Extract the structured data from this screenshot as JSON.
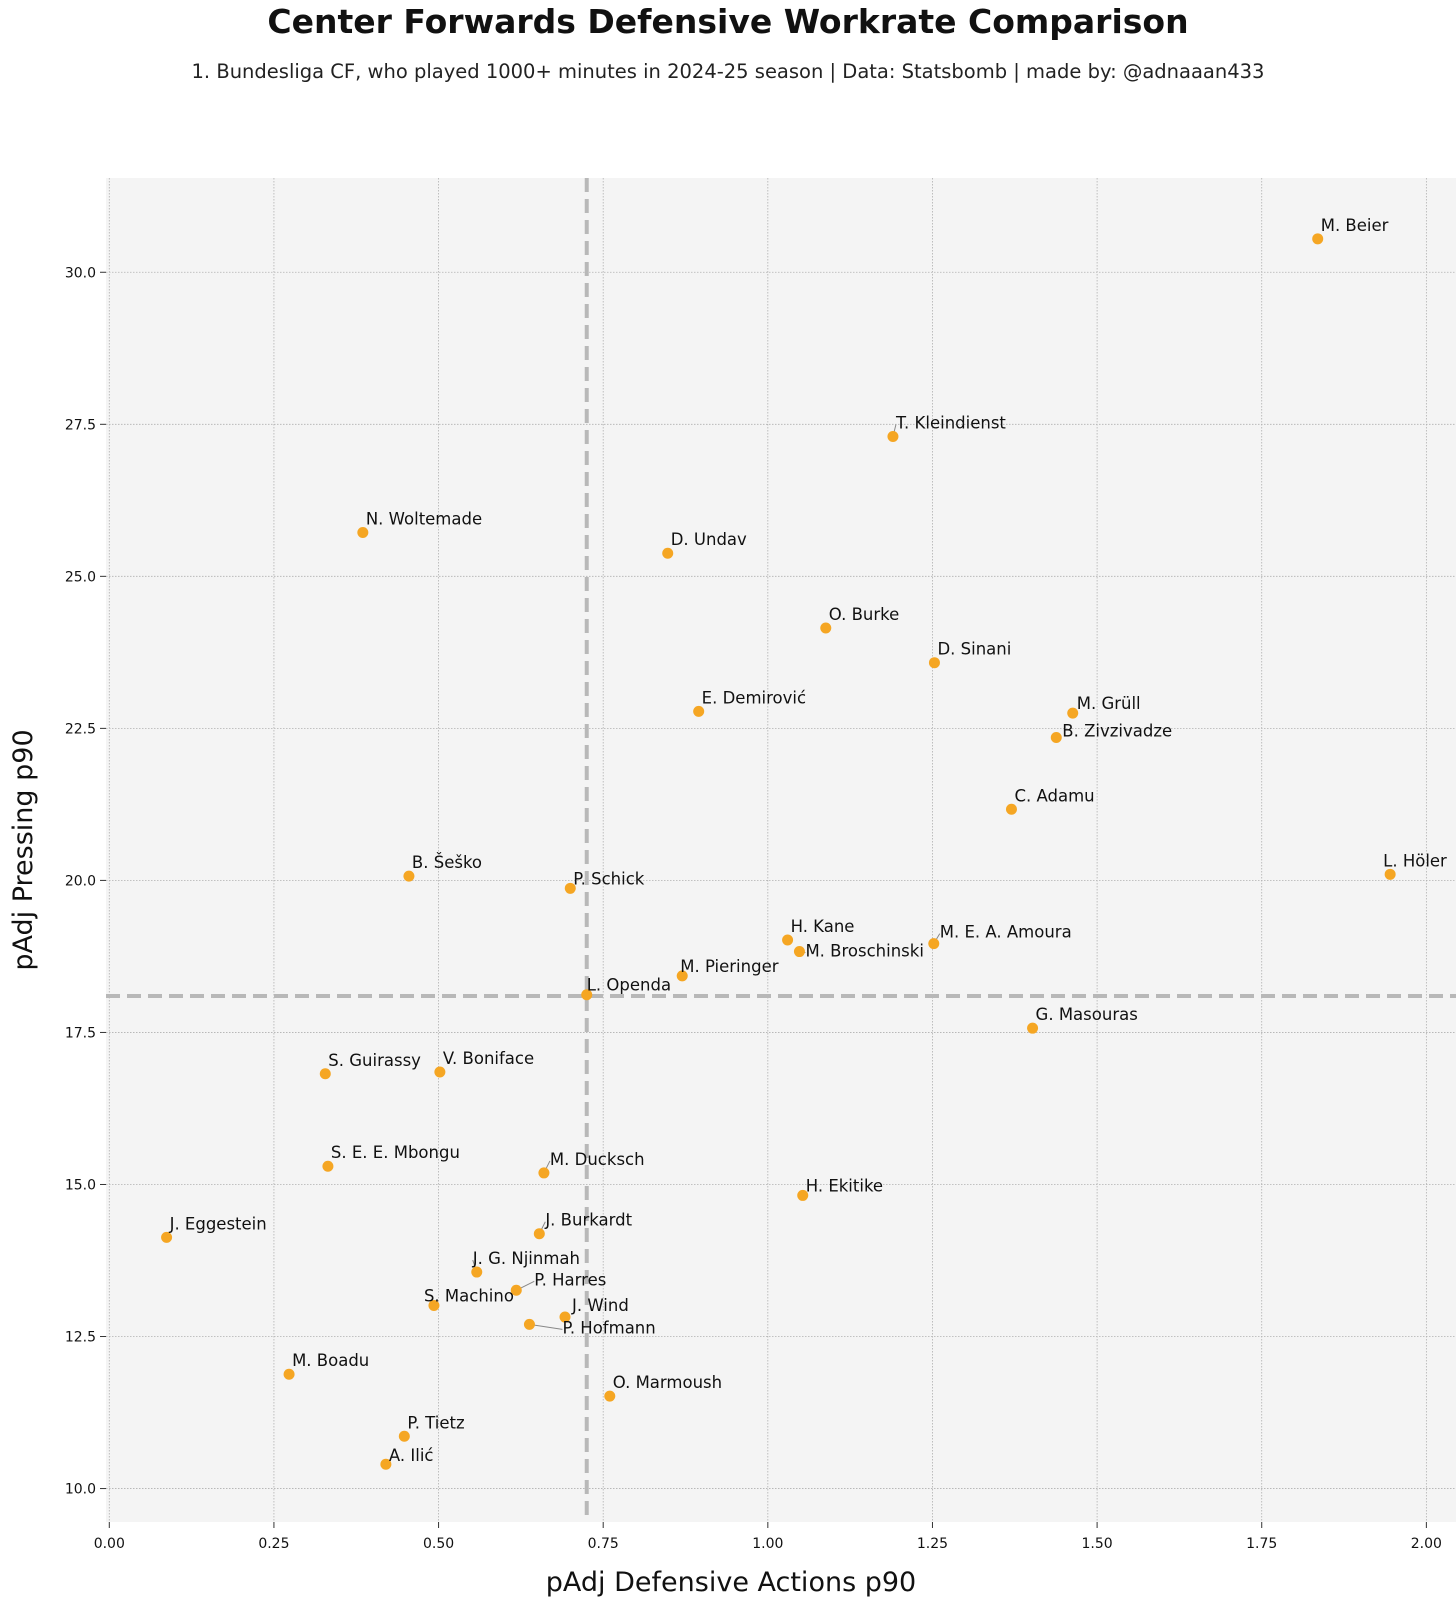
{
  "chart_data": {
    "type": "scatter",
    "title": "Center Forwards Defensive Workrate Comparison",
    "subtitle": "1. Bundesliga CF, who played 1000+ minutes in 2024-25 season  |  Data: Statsbomb  |  made by: @adnaaan433",
    "xlabel": "pAdj Defensive Actions p90",
    "ylabel": "pAdj Pressing p90",
    "xlim": [
      -0.005,
      2.045
    ],
    "ylim": [
      9.45,
      31.55
    ],
    "xticks": [
      "0.00",
      "0.25",
      "0.50",
      "0.75",
      "1.00",
      "1.25",
      "1.50",
      "1.75",
      "2.00"
    ],
    "yticks": [
      "10.0",
      "12.5",
      "15.0",
      "17.5",
      "20.0",
      "22.5",
      "25.0",
      "27.5",
      "30.0"
    ],
    "grid": true,
    "marker_color": "#f5a623",
    "reference_lines": {
      "x": 0.725,
      "y": 18.1
    },
    "points": [
      {
        "name": "M. Beier",
        "x": 1.835,
        "y": 30.55
      },
      {
        "name": "T. Kleindienst",
        "x": 1.19,
        "y": 27.3
      },
      {
        "name": "N. Woltemade",
        "x": 0.385,
        "y": 25.72
      },
      {
        "name": "D. Undav",
        "x": 0.848,
        "y": 25.38
      },
      {
        "name": "O. Burke",
        "x": 1.088,
        "y": 24.15
      },
      {
        "name": "D. Sinani",
        "x": 1.253,
        "y": 23.58
      },
      {
        "name": "E. Demirović",
        "x": 0.895,
        "y": 22.78
      },
      {
        "name": "M. Grüll",
        "x": 1.463,
        "y": 22.75
      },
      {
        "name": "B. Zivzivadze",
        "x": 1.438,
        "y": 22.35
      },
      {
        "name": "C. Adamu",
        "x": 1.37,
        "y": 21.17
      },
      {
        "name": "B. Šeško",
        "x": 0.455,
        "y": 20.07
      },
      {
        "name": "L. Höler",
        "x": 1.945,
        "y": 20.1
      },
      {
        "name": "P. Schick",
        "x": 0.7,
        "y": 19.87
      },
      {
        "name": "H. Kane",
        "x": 1.03,
        "y": 19.02
      },
      {
        "name": "M. Broschinski",
        "x": 1.048,
        "y": 18.83
      },
      {
        "name": "M. E. A. Amoura",
        "x": 1.252,
        "y": 18.96
      },
      {
        "name": "M. Pieringer",
        "x": 0.87,
        "y": 18.43
      },
      {
        "name": "L. Openda",
        "x": 0.725,
        "y": 18.12
      },
      {
        "name": "G. Masouras",
        "x": 1.402,
        "y": 17.57
      },
      {
        "name": "S. Guirassy",
        "x": 0.328,
        "y": 16.82
      },
      {
        "name": "V. Boniface",
        "x": 0.502,
        "y": 16.85
      },
      {
        "name": "S. E. E. Mbongu",
        "x": 0.332,
        "y": 15.3
      },
      {
        "name": "M. Ducksch",
        "x": 0.66,
        "y": 15.19
      },
      {
        "name": "H. Ekitike",
        "x": 1.053,
        "y": 14.82
      },
      {
        "name": "J. Eggestein",
        "x": 0.087,
        "y": 14.13
      },
      {
        "name": "J. Burkardt",
        "x": 0.653,
        "y": 14.19
      },
      {
        "name": "J. G. Njinmah",
        "x": 0.558,
        "y": 13.56
      },
      {
        "name": "P. Harres",
        "x": 0.618,
        "y": 13.26
      },
      {
        "name": "S. Machino",
        "x": 0.493,
        "y": 13.01
      },
      {
        "name": "J. Wind",
        "x": 0.692,
        "y": 12.82
      },
      {
        "name": "P. Hofmann",
        "x": 0.638,
        "y": 12.7
      },
      {
        "name": "M. Boadu",
        "x": 0.273,
        "y": 11.88
      },
      {
        "name": "O. Marmoush",
        "x": 0.76,
        "y": 11.52
      },
      {
        "name": "P. Tietz",
        "x": 0.448,
        "y": 10.86
      },
      {
        "name": "A. Ilić",
        "x": 0.42,
        "y": 10.4
      }
    ]
  }
}
